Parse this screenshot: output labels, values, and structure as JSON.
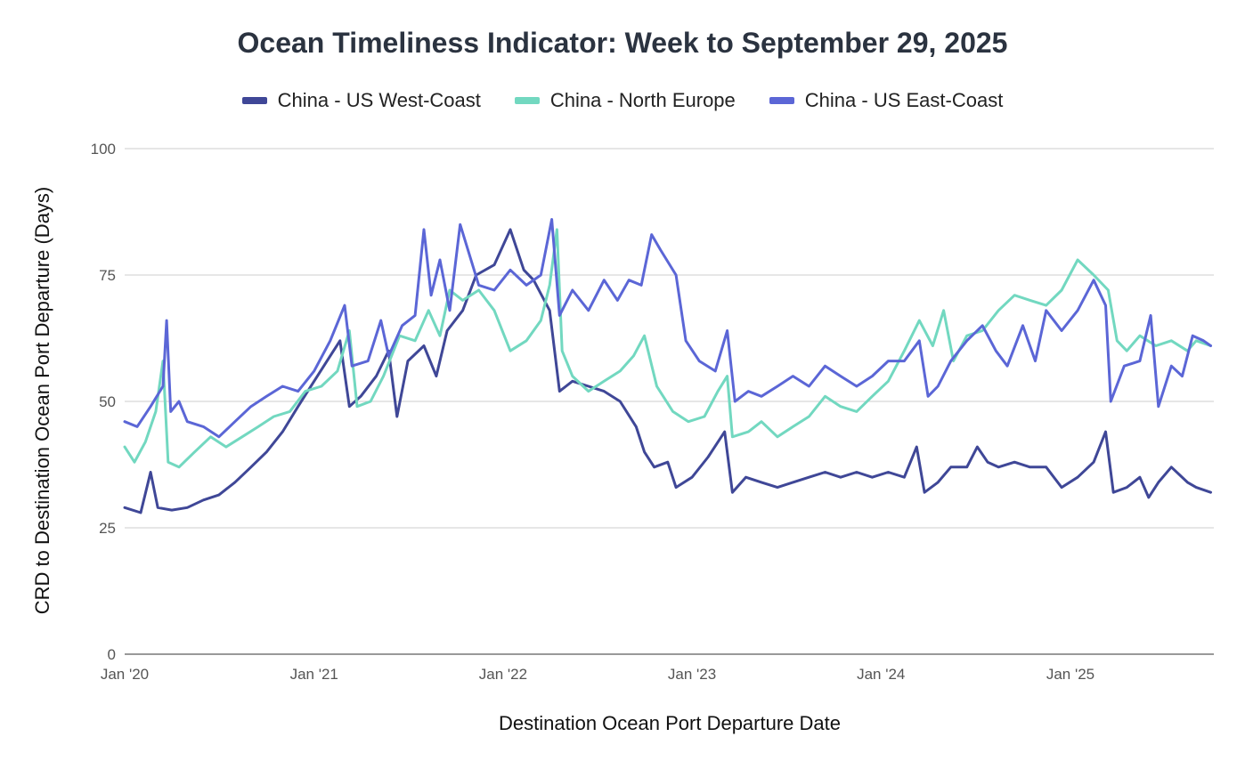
{
  "chart_data": {
    "type": "line",
    "title": "Ocean Timeliness Indicator: Week to September 29, 2025",
    "xlabel": "Destination Ocean Port Departure Date",
    "ylabel": "CRD to Destination Ocean Port Departure (Days)",
    "ylim": [
      0,
      100
    ],
    "yticks": [
      "0",
      "25",
      "50",
      "75",
      "100"
    ],
    "xlim": [
      "2020-01-01",
      "2025-10-05"
    ],
    "xticks": [
      {
        "label": "Jan '20",
        "date": "2020-01-01"
      },
      {
        "label": "Jan '21",
        "date": "2021-01-01"
      },
      {
        "label": "Jan '22",
        "date": "2022-01-01"
      },
      {
        "label": "Jan '23",
        "date": "2023-01-01"
      },
      {
        "label": "Jan '24",
        "date": "2024-01-01"
      },
      {
        "label": "Jan '25",
        "date": "2025-01-01"
      }
    ],
    "grid": true,
    "legend_position": "top",
    "series": [
      {
        "name": "China - US West-Coast",
        "color": "#3f4797",
        "points": [
          [
            "2020-01-01",
            29
          ],
          [
            "2020-02-01",
            28
          ],
          [
            "2020-02-20",
            36
          ],
          [
            "2020-03-05",
            29
          ],
          [
            "2020-04-01",
            28.5
          ],
          [
            "2020-05-01",
            29
          ],
          [
            "2020-06-01",
            30.5
          ],
          [
            "2020-07-01",
            31.5
          ],
          [
            "2020-08-01",
            34
          ],
          [
            "2020-09-01",
            37
          ],
          [
            "2020-10-01",
            40
          ],
          [
            "2020-11-01",
            44
          ],
          [
            "2020-12-01",
            49
          ],
          [
            "2021-01-01",
            54
          ],
          [
            "2021-02-01",
            59
          ],
          [
            "2021-02-20",
            62
          ],
          [
            "2021-03-10",
            49
          ],
          [
            "2021-04-01",
            51
          ],
          [
            "2021-05-01",
            55
          ],
          [
            "2021-05-25",
            60
          ],
          [
            "2021-06-10",
            47
          ],
          [
            "2021-07-01",
            58
          ],
          [
            "2021-08-01",
            61
          ],
          [
            "2021-08-25",
            55
          ],
          [
            "2021-09-15",
            64
          ],
          [
            "2021-10-15",
            68
          ],
          [
            "2021-11-10",
            75
          ],
          [
            "2021-12-15",
            77
          ],
          [
            "2022-01-15",
            84
          ],
          [
            "2022-02-10",
            76
          ],
          [
            "2022-03-01",
            74
          ],
          [
            "2022-04-01",
            68
          ],
          [
            "2022-04-20",
            52
          ],
          [
            "2022-05-15",
            54
          ],
          [
            "2022-06-15",
            53
          ],
          [
            "2022-07-15",
            52
          ],
          [
            "2022-08-15",
            50
          ],
          [
            "2022-09-15",
            45
          ],
          [
            "2022-10-01",
            40
          ],
          [
            "2022-10-20",
            37
          ],
          [
            "2022-11-15",
            38
          ],
          [
            "2022-12-01",
            33
          ],
          [
            "2023-01-01",
            35
          ],
          [
            "2023-02-01",
            39
          ],
          [
            "2023-03-05",
            44
          ],
          [
            "2023-03-20",
            32
          ],
          [
            "2023-04-15",
            35
          ],
          [
            "2023-05-15",
            34
          ],
          [
            "2023-06-15",
            33
          ],
          [
            "2023-07-15",
            34
          ],
          [
            "2023-08-15",
            35
          ],
          [
            "2023-09-15",
            36
          ],
          [
            "2023-10-15",
            35
          ],
          [
            "2023-11-15",
            36
          ],
          [
            "2023-12-15",
            35
          ],
          [
            "2024-01-15",
            36
          ],
          [
            "2024-02-15",
            35
          ],
          [
            "2024-03-10",
            41
          ],
          [
            "2024-03-25",
            32
          ],
          [
            "2024-04-20",
            34
          ],
          [
            "2024-05-15",
            37
          ],
          [
            "2024-06-15",
            37
          ],
          [
            "2024-07-05",
            41
          ],
          [
            "2024-07-25",
            38
          ],
          [
            "2024-08-15",
            37
          ],
          [
            "2024-09-15",
            38
          ],
          [
            "2024-10-15",
            37
          ],
          [
            "2024-11-15",
            37
          ],
          [
            "2024-12-15",
            33
          ],
          [
            "2025-01-15",
            35
          ],
          [
            "2025-02-15",
            38
          ],
          [
            "2025-03-10",
            44
          ],
          [
            "2025-03-25",
            32
          ],
          [
            "2025-04-20",
            33
          ],
          [
            "2025-05-15",
            35
          ],
          [
            "2025-06-01",
            31
          ],
          [
            "2025-06-20",
            34
          ],
          [
            "2025-07-15",
            37
          ],
          [
            "2025-08-15",
            34
          ],
          [
            "2025-09-01",
            33
          ],
          [
            "2025-09-29",
            32
          ]
        ]
      },
      {
        "name": "China - North Europe",
        "color": "#72d8c0",
        "points": [
          [
            "2020-01-01",
            41
          ],
          [
            "2020-01-20",
            38
          ],
          [
            "2020-02-10",
            42
          ],
          [
            "2020-03-01",
            48
          ],
          [
            "2020-03-15",
            58
          ],
          [
            "2020-03-25",
            38
          ],
          [
            "2020-04-15",
            37
          ],
          [
            "2020-05-15",
            40
          ],
          [
            "2020-06-15",
            43
          ],
          [
            "2020-07-15",
            41
          ],
          [
            "2020-08-15",
            43
          ],
          [
            "2020-09-15",
            45
          ],
          [
            "2020-10-15",
            47
          ],
          [
            "2020-11-15",
            48
          ],
          [
            "2020-12-15",
            52
          ],
          [
            "2021-01-15",
            53
          ],
          [
            "2021-02-15",
            56
          ],
          [
            "2021-03-10",
            64
          ],
          [
            "2021-03-25",
            49
          ],
          [
            "2021-04-20",
            50
          ],
          [
            "2021-05-15",
            55
          ],
          [
            "2021-06-15",
            63
          ],
          [
            "2021-07-15",
            62
          ],
          [
            "2021-08-10",
            68
          ],
          [
            "2021-09-01",
            63
          ],
          [
            "2021-09-20",
            72
          ],
          [
            "2021-10-15",
            70
          ],
          [
            "2021-11-15",
            72
          ],
          [
            "2021-12-15",
            68
          ],
          [
            "2022-01-15",
            60
          ],
          [
            "2022-02-15",
            62
          ],
          [
            "2022-03-15",
            66
          ],
          [
            "2022-04-01",
            73
          ],
          [
            "2022-04-15",
            84
          ],
          [
            "2022-04-25",
            60
          ],
          [
            "2022-05-15",
            55
          ],
          [
            "2022-06-15",
            52
          ],
          [
            "2022-07-15",
            54
          ],
          [
            "2022-08-15",
            56
          ],
          [
            "2022-09-10",
            59
          ],
          [
            "2022-10-01",
            63
          ],
          [
            "2022-10-25",
            53
          ],
          [
            "2022-11-25",
            48
          ],
          [
            "2022-12-25",
            46
          ],
          [
            "2023-01-25",
            47
          ],
          [
            "2023-02-20",
            52
          ],
          [
            "2023-03-10",
            55
          ],
          [
            "2023-03-20",
            43
          ],
          [
            "2023-04-20",
            44
          ],
          [
            "2023-05-15",
            46
          ],
          [
            "2023-06-15",
            43
          ],
          [
            "2023-07-15",
            45
          ],
          [
            "2023-08-15",
            47
          ],
          [
            "2023-09-15",
            51
          ],
          [
            "2023-10-15",
            49
          ],
          [
            "2023-11-15",
            48
          ],
          [
            "2023-12-15",
            51
          ],
          [
            "2024-01-15",
            54
          ],
          [
            "2024-02-15",
            60
          ],
          [
            "2024-03-15",
            66
          ],
          [
            "2024-04-10",
            61
          ],
          [
            "2024-05-01",
            68
          ],
          [
            "2024-05-20",
            58
          ],
          [
            "2024-06-15",
            63
          ],
          [
            "2024-07-15",
            64
          ],
          [
            "2024-08-15",
            68
          ],
          [
            "2024-09-15",
            71
          ],
          [
            "2024-10-15",
            70
          ],
          [
            "2024-11-15",
            69
          ],
          [
            "2024-12-15",
            72
          ],
          [
            "2025-01-15",
            78
          ],
          [
            "2025-02-15",
            75
          ],
          [
            "2025-03-15",
            72
          ],
          [
            "2025-04-01",
            62
          ],
          [
            "2025-04-20",
            60
          ],
          [
            "2025-05-15",
            63
          ],
          [
            "2025-06-15",
            61
          ],
          [
            "2025-07-15",
            62
          ],
          [
            "2025-08-15",
            60
          ],
          [
            "2025-09-01",
            62
          ],
          [
            "2025-09-29",
            61
          ]
        ]
      },
      {
        "name": "China - US East-Coast",
        "color": "#5b66d6",
        "points": [
          [
            "2020-01-01",
            46
          ],
          [
            "2020-01-25",
            45
          ],
          [
            "2020-02-20",
            49
          ],
          [
            "2020-03-15",
            53
          ],
          [
            "2020-03-22",
            66
          ],
          [
            "2020-03-30",
            48
          ],
          [
            "2020-04-15",
            50
          ],
          [
            "2020-05-01",
            46
          ],
          [
            "2020-06-01",
            45
          ],
          [
            "2020-07-01",
            43
          ],
          [
            "2020-08-01",
            46
          ],
          [
            "2020-09-01",
            49
          ],
          [
            "2020-10-01",
            51
          ],
          [
            "2020-11-01",
            53
          ],
          [
            "2020-12-01",
            52
          ],
          [
            "2021-01-01",
            56
          ],
          [
            "2021-02-01",
            62
          ],
          [
            "2021-03-01",
            69
          ],
          [
            "2021-03-15",
            57
          ],
          [
            "2021-04-15",
            58
          ],
          [
            "2021-05-10",
            66
          ],
          [
            "2021-05-25",
            59
          ],
          [
            "2021-06-20",
            65
          ],
          [
            "2021-07-15",
            67
          ],
          [
            "2021-08-01",
            84
          ],
          [
            "2021-08-15",
            71
          ],
          [
            "2021-09-01",
            78
          ],
          [
            "2021-09-20",
            68
          ],
          [
            "2021-10-10",
            85
          ],
          [
            "2021-10-25",
            80
          ],
          [
            "2021-11-15",
            73
          ],
          [
            "2021-12-15",
            72
          ],
          [
            "2022-01-15",
            76
          ],
          [
            "2022-02-15",
            73
          ],
          [
            "2022-03-15",
            75
          ],
          [
            "2022-04-05",
            86
          ],
          [
            "2022-04-20",
            67
          ],
          [
            "2022-05-15",
            72
          ],
          [
            "2022-06-15",
            68
          ],
          [
            "2022-07-15",
            74
          ],
          [
            "2022-08-10",
            70
          ],
          [
            "2022-09-01",
            74
          ],
          [
            "2022-09-25",
            73
          ],
          [
            "2022-10-15",
            83
          ],
          [
            "2022-11-01",
            80
          ],
          [
            "2022-12-01",
            75
          ],
          [
            "2022-12-20",
            62
          ],
          [
            "2023-01-15",
            58
          ],
          [
            "2023-02-15",
            56
          ],
          [
            "2023-03-10",
            64
          ],
          [
            "2023-03-25",
            50
          ],
          [
            "2023-04-20",
            52
          ],
          [
            "2023-05-15",
            51
          ],
          [
            "2023-06-15",
            53
          ],
          [
            "2023-07-15",
            55
          ],
          [
            "2023-08-15",
            53
          ],
          [
            "2023-09-15",
            57
          ],
          [
            "2023-10-15",
            55
          ],
          [
            "2023-11-15",
            53
          ],
          [
            "2023-12-15",
            55
          ],
          [
            "2024-01-15",
            58
          ],
          [
            "2024-02-15",
            58
          ],
          [
            "2024-03-15",
            62
          ],
          [
            "2024-04-01",
            51
          ],
          [
            "2024-04-20",
            53
          ],
          [
            "2024-05-15",
            58
          ],
          [
            "2024-06-15",
            62
          ],
          [
            "2024-07-15",
            65
          ],
          [
            "2024-08-10",
            60
          ],
          [
            "2024-09-01",
            57
          ],
          [
            "2024-10-01",
            65
          ],
          [
            "2024-10-25",
            58
          ],
          [
            "2024-11-15",
            68
          ],
          [
            "2024-12-15",
            64
          ],
          [
            "2025-01-15",
            68
          ],
          [
            "2025-02-15",
            74
          ],
          [
            "2025-03-10",
            69
          ],
          [
            "2025-03-20",
            50
          ],
          [
            "2025-04-15",
            57
          ],
          [
            "2025-05-15",
            58
          ],
          [
            "2025-06-05",
            67
          ],
          [
            "2025-06-20",
            49
          ],
          [
            "2025-07-15",
            57
          ],
          [
            "2025-08-05",
            55
          ],
          [
            "2025-08-25",
            63
          ],
          [
            "2025-09-15",
            62
          ],
          [
            "2025-09-29",
            61
          ]
        ]
      }
    ]
  }
}
